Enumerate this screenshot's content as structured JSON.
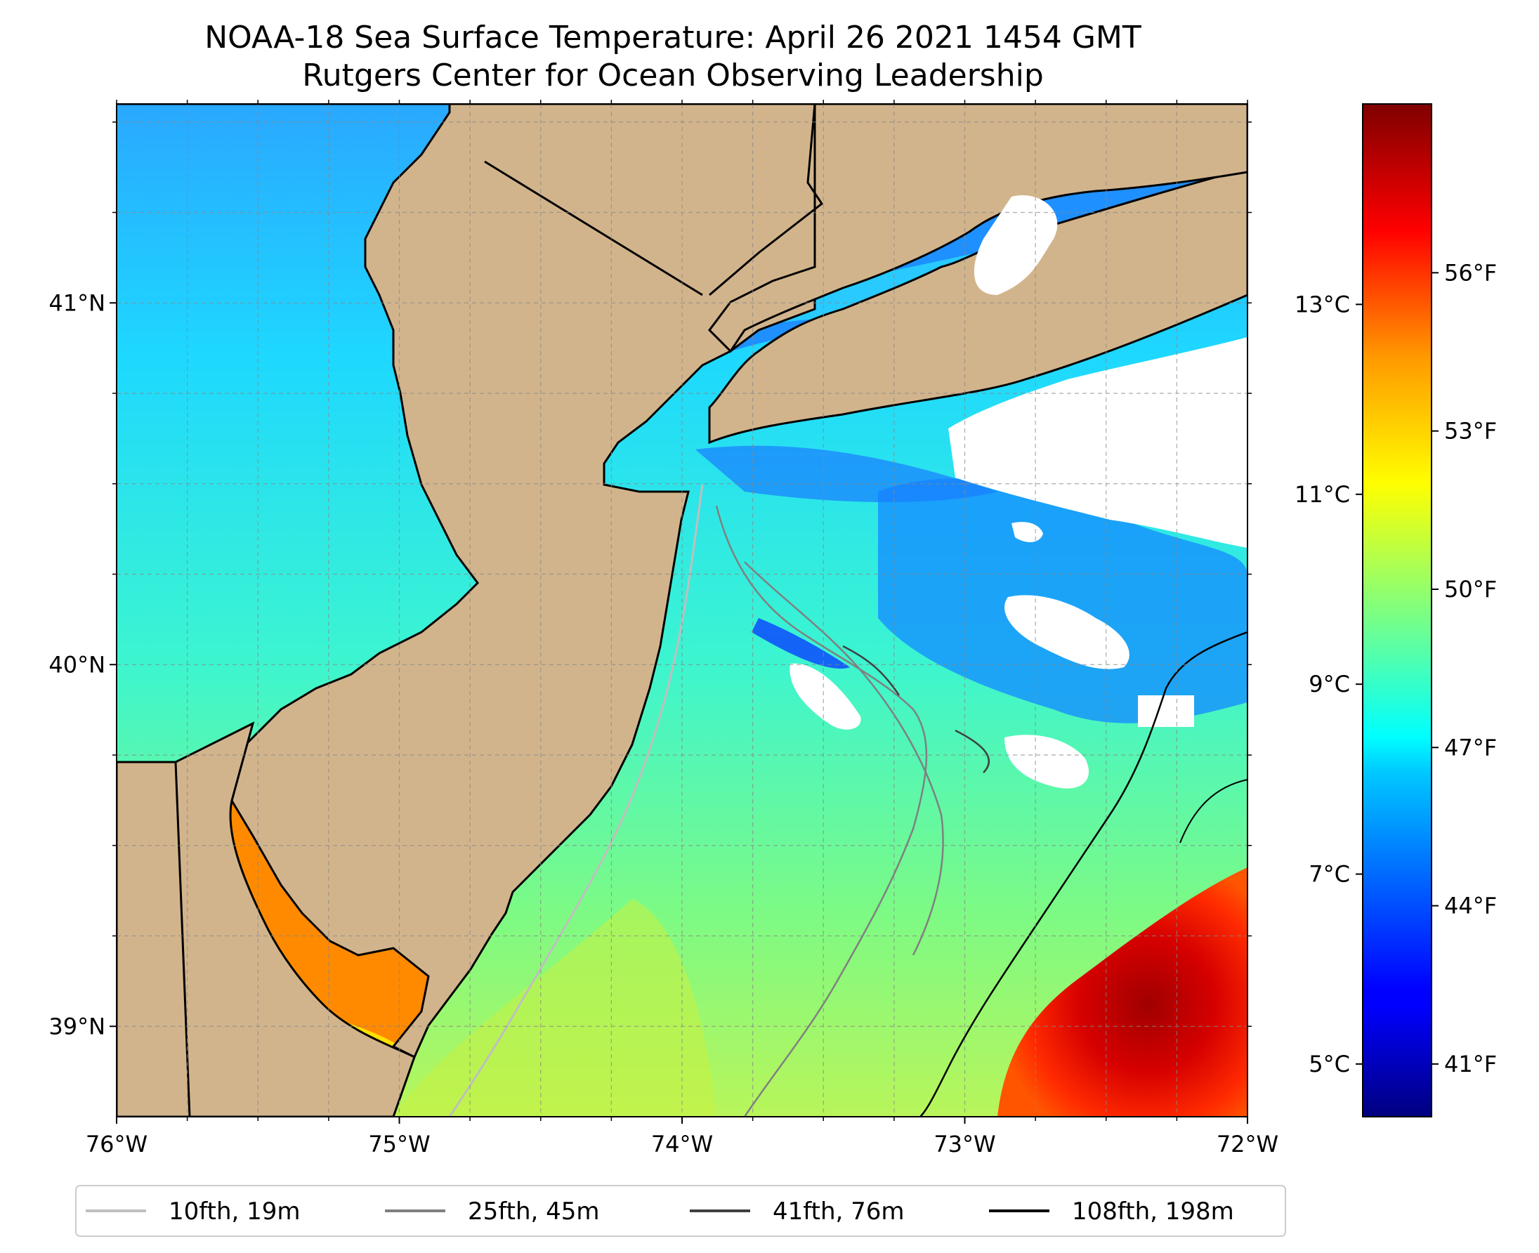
{
  "title": {
    "line1": "NOAA-18 Sea Surface Temperature: April 26 2021 1454 GMT",
    "line2": "Rutgers Center for Ocean Observing Leadership"
  },
  "map": {
    "lon_range": [
      -76,
      -72
    ],
    "lat_range": [
      38.75,
      41.55
    ],
    "lon_ticks": [
      {
        "value": -76,
        "label": "76°W"
      },
      {
        "value": -75,
        "label": "75°W"
      },
      {
        "value": -74,
        "label": "74°W"
      },
      {
        "value": -73,
        "label": "73°W"
      },
      {
        "value": -72,
        "label": "72°W"
      }
    ],
    "lat_ticks": [
      {
        "value": 41,
        "label": "41°N"
      },
      {
        "value": 40,
        "label": "40°N"
      },
      {
        "value": 39,
        "label": "39°N"
      }
    ],
    "grid": "dashed gray every 0.25°",
    "land_color": "#d2b48c",
    "cloud_color": "#ffffff"
  },
  "colorbar": {
    "colormap": "jet",
    "celsius_ticks": [
      {
        "value": 13,
        "label": "13°C"
      },
      {
        "value": 11,
        "label": "11°C"
      },
      {
        "value": 9,
        "label": "9°C"
      },
      {
        "value": 7,
        "label": "7°C"
      },
      {
        "value": 5,
        "label": "5°C"
      }
    ],
    "fahrenheit_ticks": [
      {
        "value": 56,
        "label": "56°F"
      },
      {
        "value": 53,
        "label": "53°F"
      },
      {
        "value": 50,
        "label": "50°F"
      },
      {
        "value": 47,
        "label": "47°F"
      },
      {
        "value": 44,
        "label": "44°F"
      },
      {
        "value": 41,
        "label": "41°F"
      }
    ]
  },
  "legend": {
    "placement": "bottom",
    "items": [
      {
        "label": "10fth, 19m",
        "color": "#bfbfbf"
      },
      {
        "label": "25fth, 45m",
        "color": "#808080"
      },
      {
        "label": "41fth, 76m",
        "color": "#404040"
      },
      {
        "label": "108fth, 198m",
        "color": "#000000"
      }
    ]
  }
}
